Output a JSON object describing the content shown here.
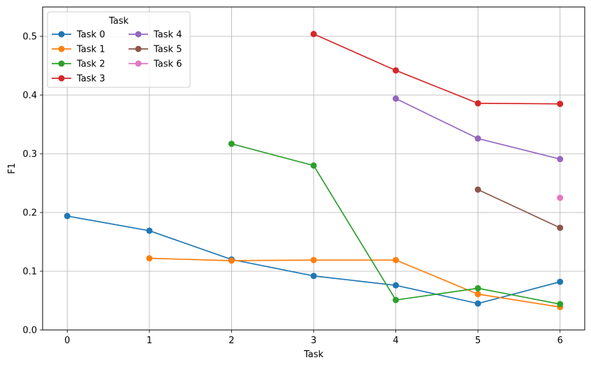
{
  "chart_data": {
    "type": "line",
    "xlabel": "Task",
    "ylabel": "F1",
    "xlim": [
      -0.3,
      6.3
    ],
    "ylim": [
      0,
      0.55
    ],
    "x_ticks": [
      0,
      1,
      2,
      3,
      4,
      5,
      6
    ],
    "y_ticks": [
      0.0,
      0.1,
      0.2,
      0.3,
      0.4,
      0.5
    ],
    "y_tick_labels": [
      "0.0",
      "0.1",
      "0.2",
      "0.3",
      "0.4",
      "0.5"
    ],
    "grid": true,
    "legend": {
      "title": "Task",
      "placement": "top-left",
      "columns": 2
    },
    "series": [
      {
        "name": "Task 0",
        "color": "#1f77b4",
        "x": [
          0,
          1,
          2,
          3,
          4,
          5,
          6
        ],
        "values": [
          0.194,
          0.169,
          0.12,
          0.092,
          0.076,
          0.045,
          0.082
        ]
      },
      {
        "name": "Task 1",
        "color": "#ff7f0e",
        "x": [
          1,
          2,
          3,
          4,
          5,
          6
        ],
        "values": [
          0.122,
          0.118,
          0.119,
          0.119,
          0.061,
          0.039
        ]
      },
      {
        "name": "Task 2",
        "color": "#2ca02c",
        "x": [
          2,
          3,
          4,
          5,
          6
        ],
        "values": [
          0.317,
          0.28,
          0.051,
          0.071,
          0.044
        ]
      },
      {
        "name": "Task 3",
        "color": "#d62728",
        "x": [
          3,
          4,
          5,
          6
        ],
        "values": [
          0.504,
          0.442,
          0.386,
          0.385
        ]
      },
      {
        "name": "Task 4",
        "color": "#9467bd",
        "x": [
          4,
          5,
          6
        ],
        "values": [
          0.394,
          0.326,
          0.291
        ]
      },
      {
        "name": "Task 5",
        "color": "#8c564b",
        "x": [
          5,
          6
        ],
        "values": [
          0.239,
          0.174
        ]
      },
      {
        "name": "Task 6",
        "color": "#e377c2",
        "x": [
          6
        ],
        "values": [
          0.225
        ]
      }
    ]
  }
}
